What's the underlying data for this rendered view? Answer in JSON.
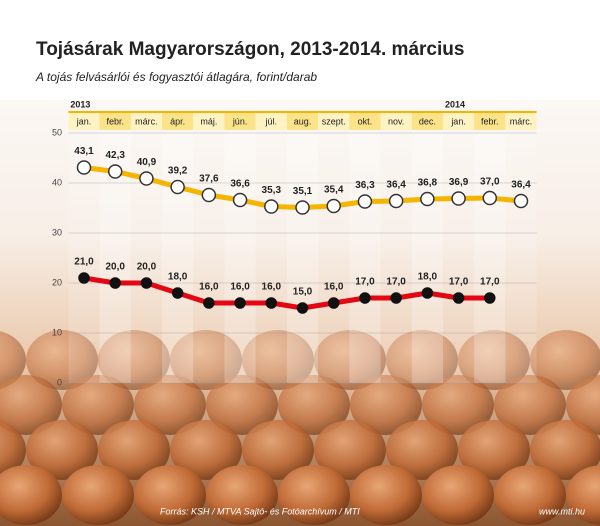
{
  "chart_data": {
    "type": "line",
    "title": "Tojásárak Magyarországon, 2013-2014. március",
    "subtitle": "A tojás felvásárlói és fogyasztói átlagára, forint/darab",
    "year_labels": [
      "2013",
      "2014"
    ],
    "categories": [
      "jan.",
      "febr.",
      "márc.",
      "ápr.",
      "máj.",
      "jún.",
      "júl.",
      "aug.",
      "szept.",
      "okt.",
      "nov.",
      "dec.",
      "jan.",
      "febr.",
      "márc."
    ],
    "series": [
      {
        "color": "#f5b400",
        "values": [
          43.1,
          42.3,
          40.9,
          39.2,
          37.6,
          36.6,
          35.3,
          35.1,
          35.4,
          36.3,
          36.4,
          36.8,
          36.9,
          37.0,
          36.4
        ],
        "value_labels": [
          "43,1",
          "42,3",
          "40,9",
          "39,2",
          "37,6",
          "36,6",
          "35,3",
          "35,1",
          "35,4",
          "36,3",
          "36,4",
          "36,8",
          "36,9",
          "37,0",
          "36,4"
        ]
      },
      {
        "color": "#e30613",
        "values": [
          21.0,
          20.0,
          20.0,
          18.0,
          16.0,
          16.0,
          16.0,
          15.0,
          16.0,
          17.0,
          17.0,
          18.0,
          17.0,
          17.0,
          null
        ],
        "value_labels": [
          "21,0",
          "20,0",
          "20,0",
          "18,0",
          "16,0",
          "16,0",
          "16,0",
          "15,0",
          "16,0",
          "17,0",
          "17,0",
          "18,0",
          "17,0",
          "17,0",
          null
        ]
      }
    ],
    "ylim": [
      0,
      50
    ],
    "yticks": [
      0,
      10,
      20,
      30,
      40,
      50
    ],
    "grid": true,
    "source": "Forrás: KSH / MTVA Sajtó- és Fotóarchívum / MTI",
    "site": "www.mti.hu"
  }
}
